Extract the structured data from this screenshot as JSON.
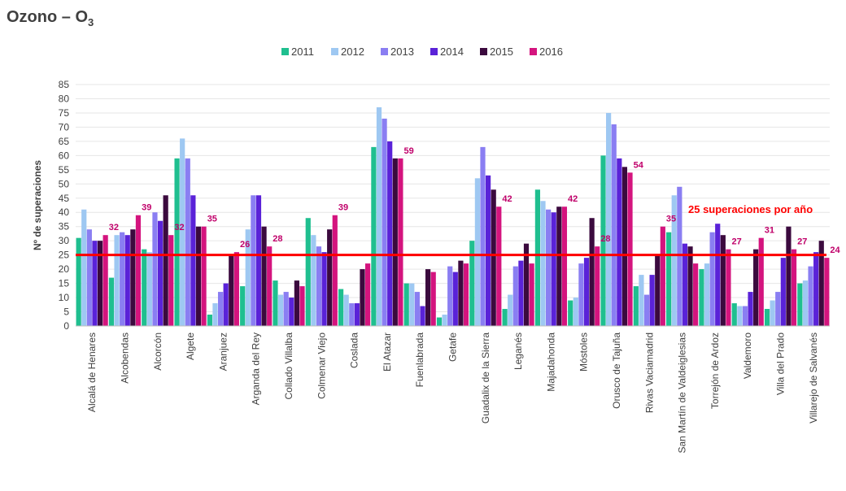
{
  "title": {
    "text": "Ozono – O",
    "subscript": "3"
  },
  "chart_data": {
    "type": "bar",
    "ylabel": "Nº de superaciones",
    "xlabel": "",
    "ylim": [
      0,
      85
    ],
    "ytick_step": 5,
    "yticks": [
      "0",
      "5",
      "10",
      "15",
      "20",
      "25",
      "30",
      "35",
      "40",
      "45",
      "50",
      "55",
      "60",
      "65",
      "70",
      "75",
      "80",
      "85"
    ],
    "grid": true,
    "legend_position": "top",
    "categories": [
      "Alcalá de Henares",
      "Alcobendas",
      "Alcorcón",
      "Algete",
      "Aranjuez",
      "Arganda del Rey",
      "Collado Villalba",
      "Colmenar Viejo",
      "Coslada",
      "El Atazar",
      "Fuenlabrada",
      "Getafe",
      "Guadalix de la Sierra",
      "Leganés",
      "Majadahonda",
      "Móstoles",
      "Orusco de Tajuña",
      "Rivas Vaciamadrid",
      "San Martín de Valdeiglesias",
      "Torrejón de Ardoz",
      "Valdemoro",
      "Villa del Prado",
      "Villarejo de Salvanés"
    ],
    "series": [
      {
        "name": "2011",
        "color": "#1fbf8f",
        "values": [
          31,
          17,
          27,
          59,
          4,
          14,
          16,
          38,
          13,
          63,
          15,
          3,
          30,
          6,
          48,
          9,
          60,
          14,
          33,
          20,
          8,
          6,
          15
        ]
      },
      {
        "name": "2012",
        "color": "#9ec8f2",
        "values": [
          41,
          32,
          26,
          66,
          8,
          34,
          11,
          32,
          11,
          77,
          15,
          4,
          52,
          11,
          44,
          10,
          75,
          18,
          46,
          22,
          7,
          9,
          16
        ]
      },
      {
        "name": "2013",
        "color": "#8a7ef2",
        "values": [
          34,
          33,
          40,
          59,
          12,
          46,
          12,
          28,
          8,
          73,
          12,
          21,
          63,
          21,
          41,
          22,
          71,
          11,
          49,
          33,
          7,
          12,
          21
        ]
      },
      {
        "name": "2014",
        "color": "#5a22d8",
        "values": [
          30,
          32,
          37,
          46,
          15,
          46,
          10,
          26,
          8,
          65,
          7,
          19,
          53,
          23,
          40,
          24,
          59,
          18,
          29,
          36,
          12,
          24,
          26
        ]
      },
      {
        "name": "2015",
        "color": "#3b0a3e",
        "values": [
          30,
          34,
          46,
          35,
          25,
          35,
          16,
          34,
          20,
          59,
          20,
          23,
          48,
          29,
          42,
          38,
          56,
          25,
          28,
          32,
          27,
          35,
          30
        ]
      },
      {
        "name": "2016",
        "color": "#d4147e",
        "values": [
          32,
          39,
          32,
          35,
          26,
          28,
          14,
          39,
          22,
          59,
          19,
          22,
          42,
          22,
          42,
          28,
          54,
          35,
          22,
          27,
          31,
          27,
          24
        ]
      }
    ],
    "data_labels": [
      {
        "category": "Alcalá de Henares",
        "series": "2016",
        "text": "32"
      },
      {
        "category": "Alcobendas",
        "series": "2016",
        "text": "39"
      },
      {
        "category": "Alcorcón",
        "series": "2016",
        "text": "32"
      },
      {
        "category": "Algete",
        "series": "2016",
        "text": "35"
      },
      {
        "category": "Aranjuez",
        "series": "2016",
        "text": "26"
      },
      {
        "category": "Arganda del Rey",
        "series": "2016",
        "text": "28"
      },
      {
        "category": "Colmenar Viejo",
        "series": "2016",
        "text": "39"
      },
      {
        "category": "El Atazar",
        "series": "2016",
        "text": "59"
      },
      {
        "category": "Guadalix de la Sierra",
        "series": "2016",
        "text": "42"
      },
      {
        "category": "Majadahonda",
        "series": "2016",
        "text": "42"
      },
      {
        "category": "Móstoles",
        "series": "2016",
        "text": "28"
      },
      {
        "category": "Orusco de Tajuña",
        "series": "2016",
        "text": "54"
      },
      {
        "category": "Rivas Vaciamadrid",
        "series": "2016",
        "text": "35"
      },
      {
        "category": "Torrejón de Ardoz",
        "series": "2016",
        "text": "27"
      },
      {
        "category": "Valdemoro",
        "series": "2016",
        "text": "31"
      },
      {
        "category": "Villa del Prado",
        "series": "2016",
        "text": "27"
      },
      {
        "category": "Villarejo de Salvanés",
        "series": "2016",
        "text": "24"
      }
    ],
    "threshold": {
      "value": 25,
      "label": "25 superaciones por año",
      "color": "#ff0000"
    },
    "label_color": "#c0006a"
  }
}
